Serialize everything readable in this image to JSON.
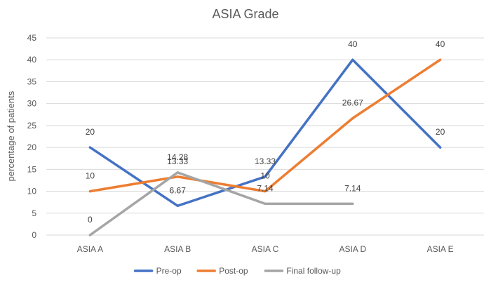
{
  "chart_data": {
    "type": "line",
    "title": "ASIA Grade",
    "xlabel": "",
    "ylabel": "percentage of patients",
    "categories": [
      "ASIA A",
      "ASIA B",
      "ASIA C",
      "ASIA D",
      "ASIA E"
    ],
    "ylim": [
      0,
      45
    ],
    "ytick_step": 5,
    "grid": true,
    "legend_position": "bottom",
    "series": [
      {
        "name": "Pre-op",
        "color": "#4472c4",
        "values": [
          20,
          6.67,
          13.33,
          40,
          20
        ],
        "labels": [
          "20",
          "6.67",
          "13.33",
          "40",
          "20"
        ]
      },
      {
        "name": "Post-op",
        "color": "#ed7d31",
        "values": [
          10,
          13.33,
          10,
          26.67,
          40
        ],
        "labels": [
          "10",
          "13.33",
          "10",
          "26.67",
          "40"
        ]
      },
      {
        "name": "Final follow-up",
        "color": "#a5a5a5",
        "values": [
          0,
          14.28,
          7.14,
          7.14,
          null
        ],
        "labels": [
          "0",
          "14.28",
          "7.14",
          "7.14",
          null
        ]
      }
    ]
  }
}
